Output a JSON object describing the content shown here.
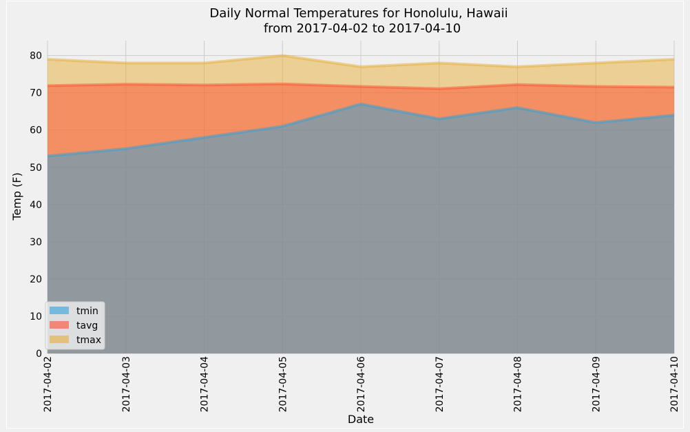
{
  "chart_data": {
    "type": "area",
    "title": "Daily Normal Temperatures for Honolulu, Hawaii",
    "subtitle": "from 2017-04-02 to 2017-04-10",
    "xlabel": "Date",
    "ylabel": "Temp (F)",
    "categories": [
      "2017-04-02",
      "2017-04-03",
      "2017-04-04",
      "2017-04-05",
      "2017-04-06",
      "2017-04-07",
      "2017-04-08",
      "2017-04-09",
      "2017-04-10"
    ],
    "ylim": [
      0,
      84
    ],
    "yticks": [
      0,
      10,
      20,
      30,
      40,
      50,
      60,
      70,
      80
    ],
    "grid": true,
    "stacked": false,
    "legend_position": "lower-left",
    "series": [
      {
        "name": "tmin",
        "color": "#30a2da",
        "values": [
          53,
          55,
          58,
          61,
          67,
          63,
          66,
          62,
          64
        ]
      },
      {
        "name": "tavg",
        "color": "#fc4f30",
        "values": [
          71.9,
          72.3,
          72.1,
          72.4,
          71.7,
          71.1,
          72.2,
          71.7,
          71.5
        ]
      },
      {
        "name": "tmax",
        "color": "#e5ae38",
        "values": [
          79,
          78,
          78,
          80,
          77,
          78,
          77,
          78,
          79
        ]
      }
    ]
  }
}
